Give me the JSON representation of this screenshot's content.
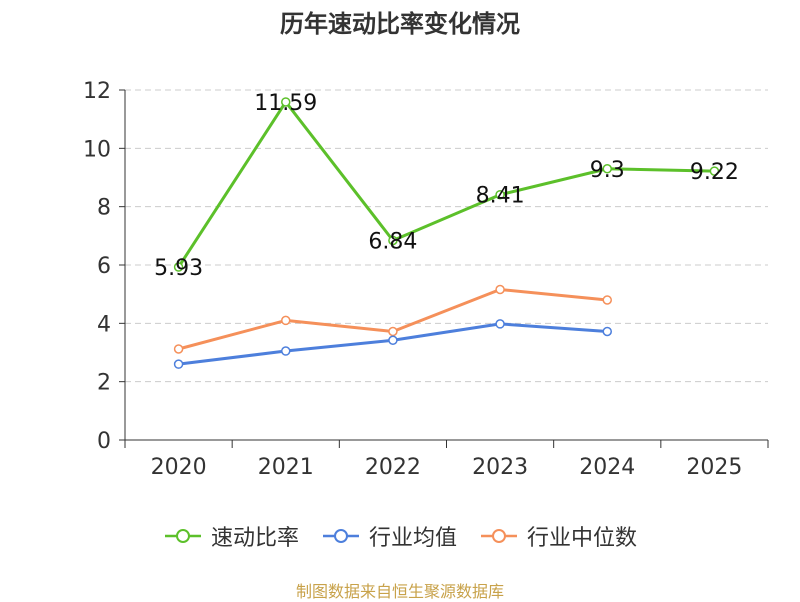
{
  "chart_data": {
    "type": "line",
    "title": "历年速动比率变化情况",
    "categories": [
      "2020",
      "2021",
      "2022",
      "2023",
      "2024",
      "2025"
    ],
    "yticks": [
      0,
      2,
      4,
      6,
      8,
      10,
      12
    ],
    "ylim": [
      0,
      12
    ],
    "xlabel": "",
    "ylabel": "",
    "grid": true,
    "legend_position": "bottom",
    "series": [
      {
        "name": "速动比率",
        "color": "#5cc02a",
        "values": [
          5.93,
          11.59,
          6.84,
          8.41,
          9.3,
          9.22
        ],
        "labels": [
          "5.93",
          "11.59",
          "6.84",
          "8.41",
          "9.3",
          "9.22"
        ],
        "show_labels": true
      },
      {
        "name": "行业均值",
        "color": "#4d7fdc",
        "values": [
          2.6,
          3.05,
          3.42,
          3.98,
          3.72,
          null
        ],
        "show_labels": false
      },
      {
        "name": "行业中位数",
        "color": "#f5905a",
        "values": [
          3.12,
          4.1,
          3.72,
          5.16,
          4.8,
          null
        ],
        "show_labels": false
      }
    ]
  },
  "footer": {
    "text": "制图数据来自恒生聚源数据库"
  }
}
